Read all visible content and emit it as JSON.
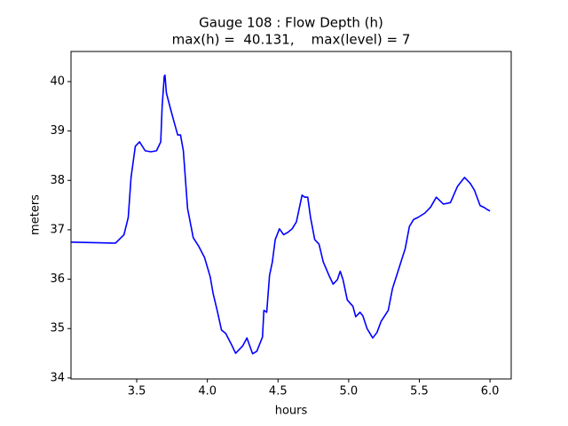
{
  "chart_data": {
    "type": "line",
    "title": "Gauge 108 : Flow Depth (h)",
    "subtitle": "max(h) =  40.131,    max(level) = 7",
    "x_label": "hours",
    "y_label": "meters",
    "xlim": [
      3.035,
      6.15
    ],
    "ylim": [
      33.98,
      40.61
    ],
    "xticks": [
      3.5,
      {
        "value": 4,
        "label": "4.0"
      },
      4.5,
      {
        "value": 5,
        "label": "5.0"
      },
      5.5,
      {
        "value": 6,
        "label": "6.0"
      }
    ],
    "yticks": [
      34,
      35,
      36,
      37,
      38,
      39,
      40
    ],
    "grid": false,
    "series": [
      {
        "color": "#0000ff",
        "x": [
          3.035,
          3.35,
          3.41,
          3.44,
          3.46,
          3.49,
          3.52,
          3.56,
          3.6,
          3.64,
          3.67,
          3.68,
          3.695,
          3.7,
          3.71,
          3.74,
          3.76,
          3.79,
          3.81,
          3.83,
          3.86,
          3.9,
          3.94,
          3.98,
          4.02,
          4.04,
          4.07,
          4.1,
          4.13,
          4.17,
          4.2,
          4.23,
          4.25,
          4.28,
          4.3,
          4.32,
          4.35,
          4.39,
          4.4,
          4.42,
          4.44,
          4.46,
          4.48,
          4.51,
          4.54,
          4.57,
          4.6,
          4.63,
          4.67,
          4.69,
          4.71,
          4.73,
          4.76,
          4.79,
          4.82,
          4.86,
          4.89,
          4.92,
          4.94,
          4.96,
          4.99,
          5.03,
          5.05,
          5.08,
          5.1,
          5.13,
          5.17,
          5.2,
          5.23,
          5.28,
          5.31,
          5.36,
          5.4,
          5.43,
          5.46,
          5.49,
          5.54,
          5.58,
          5.62,
          5.67,
          5.72,
          5.77,
          5.82,
          5.86,
          5.89,
          5.93,
          5.96,
          5.98,
          6.0
        ],
        "values": [
          36.75,
          36.73,
          36.9,
          37.25,
          38.06,
          38.69,
          38.78,
          38.6,
          38.58,
          38.6,
          38.78,
          39.5,
          40.11,
          40.131,
          39.77,
          39.44,
          39.23,
          38.92,
          38.92,
          38.6,
          37.43,
          36.84,
          36.66,
          36.44,
          36.05,
          35.72,
          35.36,
          34.97,
          34.9,
          34.68,
          34.5,
          34.59,
          34.65,
          34.81,
          34.65,
          34.49,
          34.54,
          34.83,
          35.37,
          35.33,
          36.08,
          36.35,
          36.8,
          37.02,
          36.9,
          36.95,
          37.02,
          37.16,
          37.7,
          37.66,
          37.66,
          37.25,
          36.8,
          36.71,
          36.35,
          36.08,
          35.9,
          35.99,
          36.16,
          35.99,
          35.58,
          35.45,
          35.24,
          35.33,
          35.26,
          35.0,
          34.81,
          34.92,
          35.15,
          35.37,
          35.81,
          36.26,
          36.62,
          37.07,
          37.21,
          37.25,
          37.34,
          37.46,
          37.66,
          37.52,
          37.55,
          37.88,
          38.06,
          37.94,
          37.8,
          37.49,
          37.45,
          37.41,
          37.38
        ]
      }
    ]
  }
}
